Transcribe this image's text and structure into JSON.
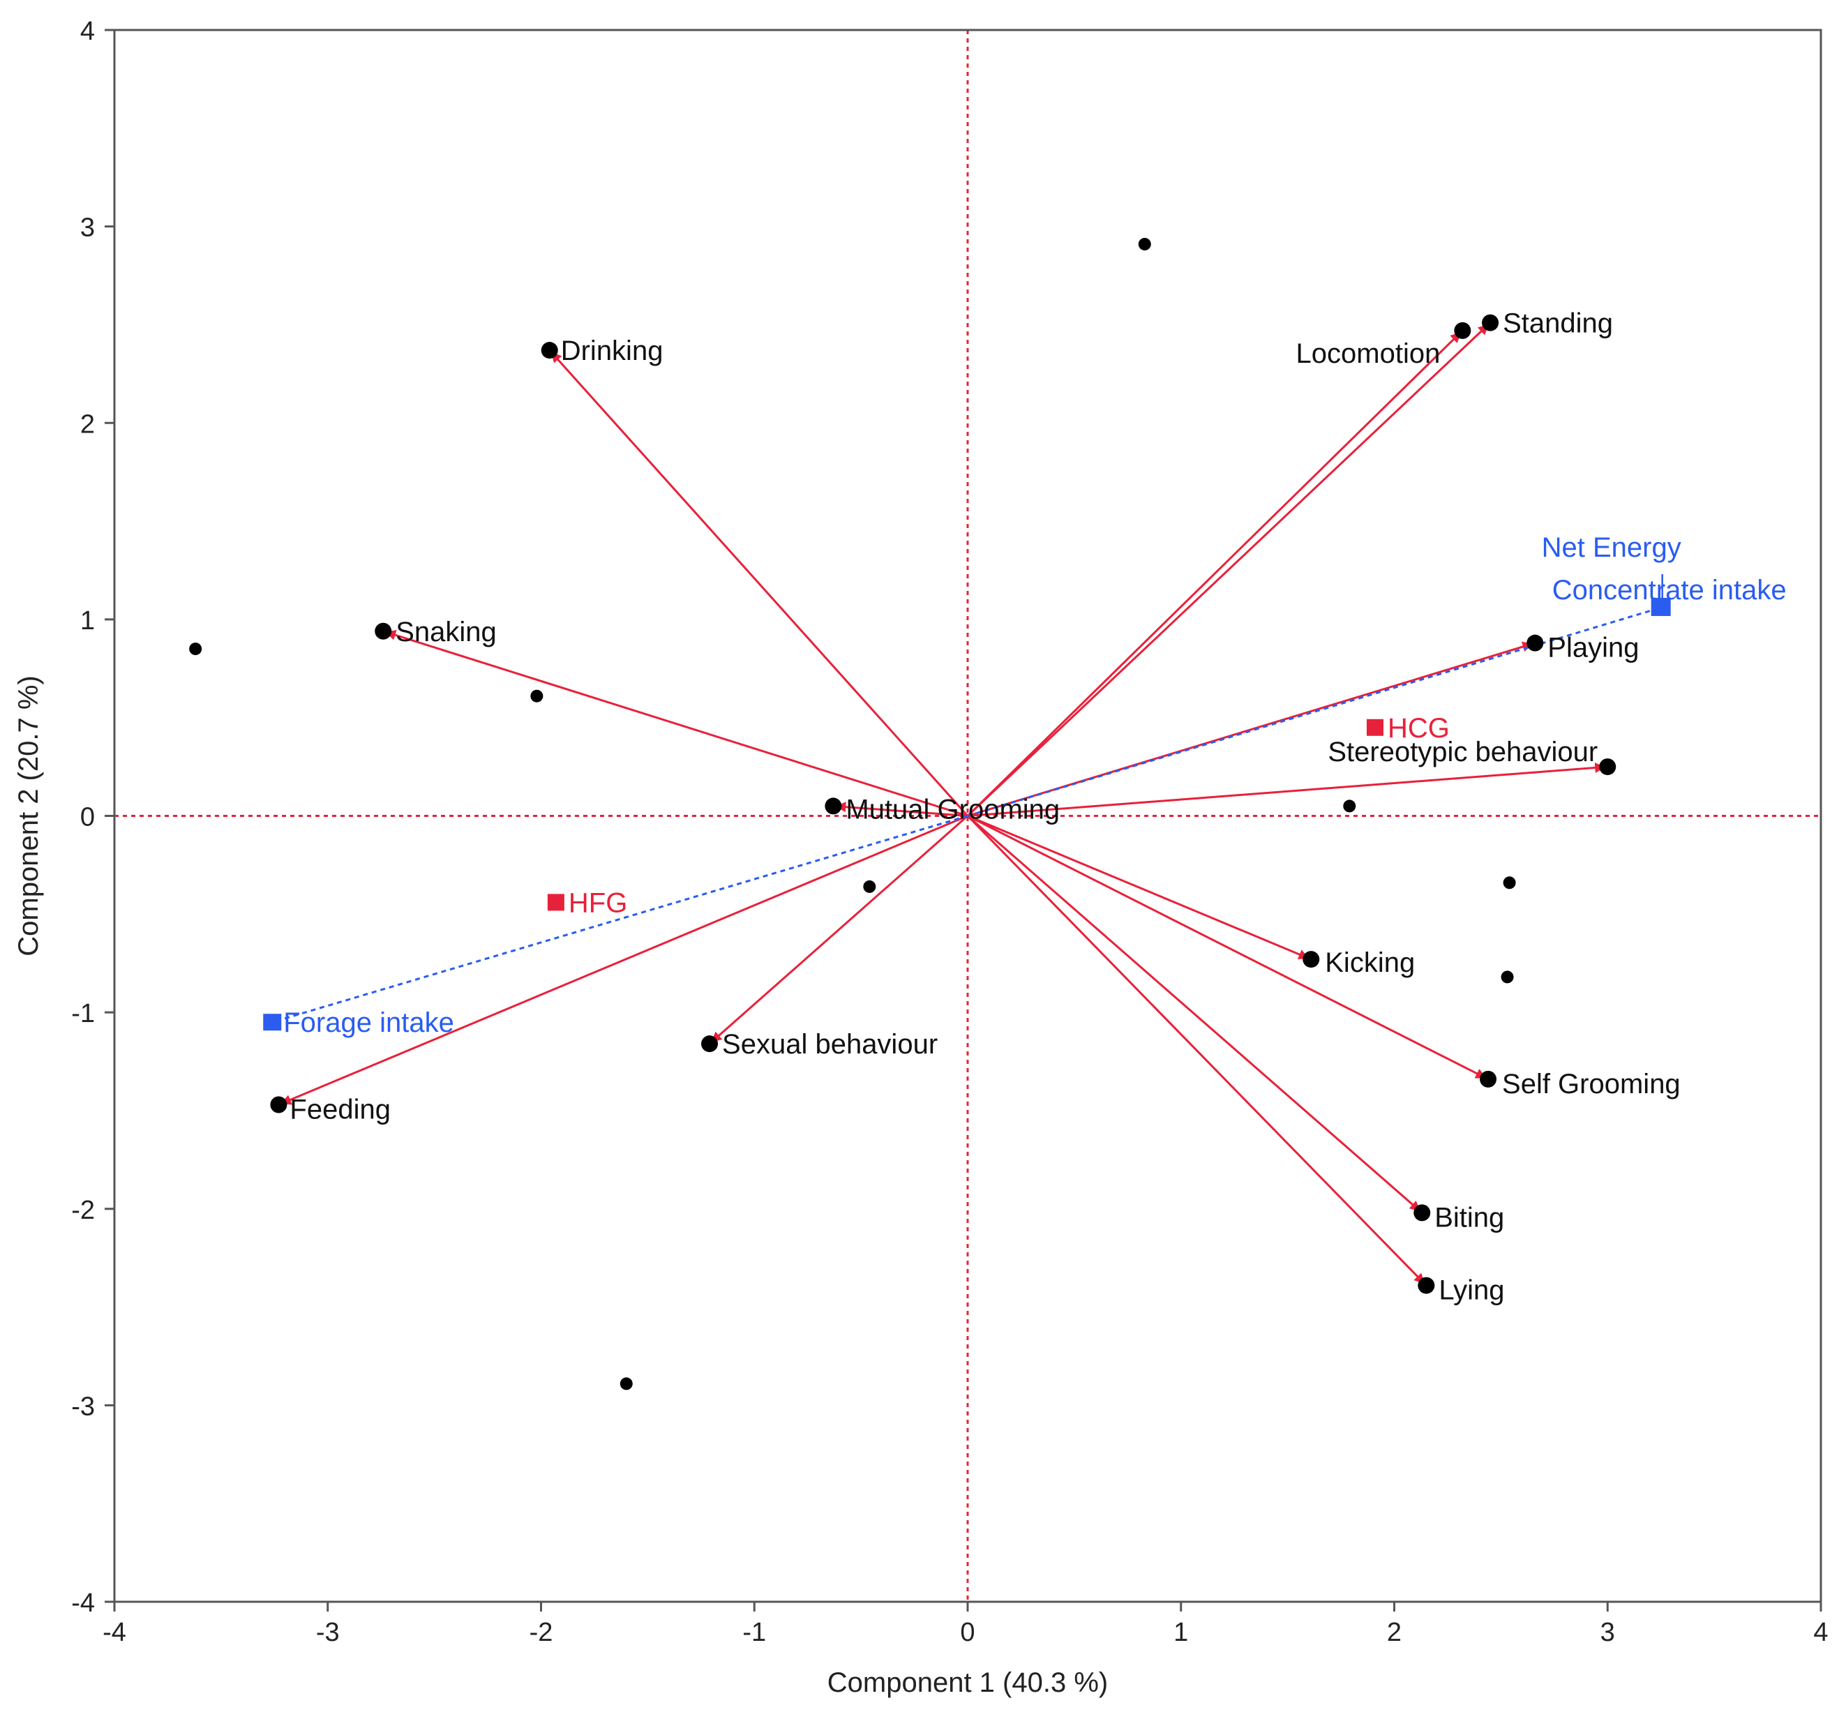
{
  "chart_data": {
    "type": "scatter",
    "subtype": "pca-biplot",
    "title": "",
    "xlabel": "Component 1  (40.3 %)",
    "ylabel": "Component 2  (20.7 %)",
    "xlim": [
      -4,
      4
    ],
    "ylim": [
      -4,
      4
    ],
    "x_ticks": [
      "-4",
      "-3",
      "-2",
      "-1",
      "0",
      "1",
      "2",
      "3",
      "4"
    ],
    "y_ticks": [
      "4",
      "3",
      "2",
      "1",
      "0",
      "-1",
      "-2",
      "-3",
      "-4"
    ],
    "grid": false,
    "reference_lines": {
      "x": 0,
      "y": 0,
      "color": "#e8213a",
      "style": "dotted"
    },
    "colors": {
      "loading": "#e8213a",
      "supplementary": "#2a5cf0",
      "group": "#e8213a",
      "point": "#000000",
      "frame": "#555555"
    },
    "observations": [
      {
        "x": -3.62,
        "y": 0.85
      },
      {
        "x": -2.02,
        "y": 0.61
      },
      {
        "x": -1.6,
        "y": -2.89
      },
      {
        "x": -0.46,
        "y": -0.36
      },
      {
        "x": 0.83,
        "y": 2.91
      },
      {
        "x": 1.79,
        "y": 0.05
      },
      {
        "x": 2.53,
        "y": -0.82
      },
      {
        "x": 2.54,
        "y": -0.34
      }
    ],
    "loadings": [
      {
        "label": "Drinking",
        "x": -1.96,
        "y": 2.37
      },
      {
        "label": "Snaking",
        "x": -2.74,
        "y": 0.94
      },
      {
        "label": "Mutual Grooming",
        "x": -0.63,
        "y": 0.05
      },
      {
        "label": "Feeding",
        "x": -3.23,
        "y": -1.47
      },
      {
        "label": "Sexual behaviour",
        "x": -1.21,
        "y": -1.16
      },
      {
        "label": "Locomotion",
        "x": 2.32,
        "y": 2.47
      },
      {
        "label": "Standing",
        "x": 2.45,
        "y": 2.51
      },
      {
        "label": "Playing",
        "x": 2.66,
        "y": 0.88
      },
      {
        "label": "Stereotypic behaviour",
        "x": 3.0,
        "y": 0.25
      },
      {
        "label": "Kicking",
        "x": 1.61,
        "y": -0.73
      },
      {
        "label": "Self Grooming",
        "x": 2.44,
        "y": -1.34
      },
      {
        "label": "Biting",
        "x": 2.13,
        "y": -2.02
      },
      {
        "label": "Lying",
        "x": 2.15,
        "y": -2.39
      }
    ],
    "supplementary": [
      {
        "label": "Net Energy",
        "x": 3.25,
        "y": 1.06
      },
      {
        "label": "Concentrate intake",
        "x": 3.25,
        "y": 1.06
      },
      {
        "label": "Forage intake",
        "x": -3.26,
        "y": -1.05
      }
    ],
    "groups": [
      {
        "label": "HCG",
        "x": 1.91,
        "y": 0.45
      },
      {
        "label": "HFG",
        "x": -1.93,
        "y": -0.44
      }
    ]
  }
}
